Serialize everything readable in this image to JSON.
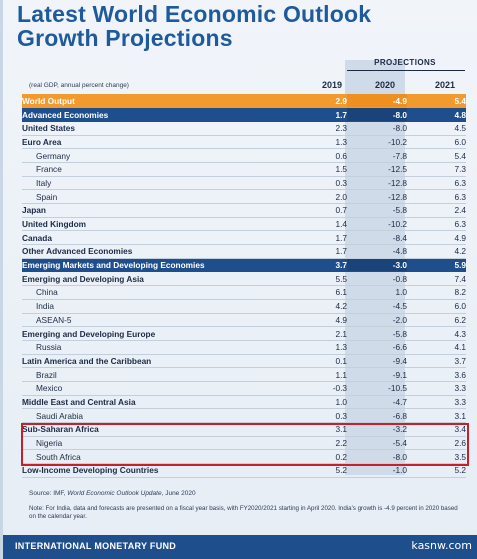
{
  "title_line1": "Latest World Economic Outlook",
  "title_line2": "Growth Projections",
  "projections_label": "PROJECTIONS",
  "header_note": "(real GDP, annual percent change)",
  "years": [
    "2019",
    "2020",
    "2021"
  ],
  "rows": [
    {
      "label": "World Output",
      "v": [
        "2.9",
        "-4.9",
        "5.4"
      ],
      "style": "world"
    },
    {
      "label": "Advanced Economies",
      "v": [
        "1.7",
        "-8.0",
        "4.8"
      ],
      "style": "blue"
    },
    {
      "label": "United States",
      "v": [
        "2.3",
        "-8.0",
        "4.5"
      ],
      "style": "bold"
    },
    {
      "label": "Euro Area",
      "v": [
        "1.3",
        "-10.2",
        "6.0"
      ],
      "style": "bold"
    },
    {
      "label": "Germany",
      "v": [
        "0.6",
        "-7.8",
        "5.4"
      ],
      "style": "sub"
    },
    {
      "label": "France",
      "v": [
        "1.5",
        "-12.5",
        "7.3"
      ],
      "style": "sub"
    },
    {
      "label": "Italy",
      "v": [
        "0.3",
        "-12.8",
        "6.3"
      ],
      "style": "sub"
    },
    {
      "label": "Spain",
      "v": [
        "2.0",
        "-12.8",
        "6.3"
      ],
      "style": "sub"
    },
    {
      "label": "Japan",
      "v": [
        "0.7",
        "-5.8",
        "2.4"
      ],
      "style": "bold"
    },
    {
      "label": "United Kingdom",
      "v": [
        "1.4",
        "-10.2",
        "6.3"
      ],
      "style": "bold"
    },
    {
      "label": "Canada",
      "v": [
        "1.7",
        "-8.4",
        "4.9"
      ],
      "style": "bold"
    },
    {
      "label": "Other Advanced Economies",
      "v": [
        "1.7",
        "-4.8",
        "4.2"
      ],
      "style": "bold"
    },
    {
      "label": "Emerging Markets and Developing Economies",
      "v": [
        "3.7",
        "-3.0",
        "5.9"
      ],
      "style": "blue"
    },
    {
      "label": "Emerging and Developing Asia",
      "v": [
        "5.5",
        "-0.8",
        "7.4"
      ],
      "style": "bold"
    },
    {
      "label": "China",
      "v": [
        "6.1",
        "1.0",
        "8.2"
      ],
      "style": "sub"
    },
    {
      "label": "India",
      "v": [
        "4.2",
        "-4.5",
        "6.0"
      ],
      "style": "sub"
    },
    {
      "label": "ASEAN-5",
      "v": [
        "4.9",
        "-2.0",
        "6.2"
      ],
      "style": "sub"
    },
    {
      "label": "Emerging and Developing Europe",
      "v": [
        "2.1",
        "-5.8",
        "4.3"
      ],
      "style": "bold"
    },
    {
      "label": "Russia",
      "v": [
        "1.3",
        "-6.6",
        "4.1"
      ],
      "style": "sub"
    },
    {
      "label": "Latin America and the Caribbean",
      "v": [
        "0.1",
        "-9.4",
        "3.7"
      ],
      "style": "bold"
    },
    {
      "label": "Brazil",
      "v": [
        "1.1",
        "-9.1",
        "3.6"
      ],
      "style": "sub"
    },
    {
      "label": "Mexico",
      "v": [
        "-0.3",
        "-10.5",
        "3.3"
      ],
      "style": "sub"
    },
    {
      "label": "Middle East and Central Asia",
      "v": [
        "1.0",
        "-4.7",
        "3.3"
      ],
      "style": "bold"
    },
    {
      "label": "Saudi Arabia",
      "v": [
        "0.3",
        "-6.8",
        "3.1"
      ],
      "style": "sub"
    },
    {
      "label": "Sub-Saharan Africa",
      "v": [
        "3.1",
        "-3.2",
        "3.4"
      ],
      "style": "bold"
    },
    {
      "label": "Nigeria",
      "v": [
        "2.2",
        "-5.4",
        "2.6"
      ],
      "style": "sub"
    },
    {
      "label": "South Africa",
      "v": [
        "0.2",
        "-8.0",
        "3.5"
      ],
      "style": "sub"
    },
    {
      "label": "Low-Income Developing Countries",
      "v": [
        "5.2",
        "-1.0",
        "5.2"
      ],
      "style": "bold"
    }
  ],
  "source_prefix": "Source: IMF, ",
  "source_title": "World Economic Outlook Update",
  "source_suffix": ", June 2020",
  "note": "Note: For India, data and forecasts are presented on a fiscal year basis, with FY2020/2021 starting in April 2020. India's growth is -4.9 percent in 2020 based on the calendar year.",
  "footer": "INTERNATIONAL MONETARY FUND",
  "watermark": "kasnw.com",
  "colors": {
    "title": "#1f5a9c",
    "world_row": "#f29a2e",
    "group_row": "#1f4e8c",
    "highlight_box": "#c8202a"
  }
}
